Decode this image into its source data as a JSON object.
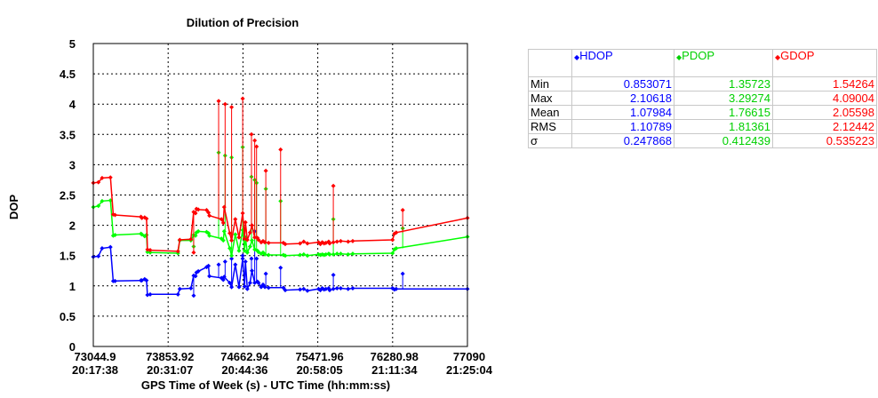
{
  "chart_data": {
    "type": "line",
    "title": "Dilution of Precision",
    "ylabel": "DOP",
    "xlabel": "GPS Time of Week (s) - UTC Time (hh:mm:ss)",
    "xlim": [
      73044.9,
      77090
    ],
    "ylim": [
      0,
      5
    ],
    "yticks": [
      "0",
      "0.5",
      "1",
      "1.5",
      "2",
      "2.5",
      "3",
      "3.5",
      "4",
      "4.5",
      "5"
    ],
    "xticks": [
      {
        "gps": "73044.9",
        "utc": "20:17:38"
      },
      {
        "gps": "73853.92",
        "utc": "20:31:07"
      },
      {
        "gps": "74662.94",
        "utc": "20:44:36"
      },
      {
        "gps": "75471.96",
        "utc": "20:58:05"
      },
      {
        "gps": "76280.98",
        "utc": "21:11:34"
      },
      {
        "gps": "77090",
        "utc": "21:25:04"
      }
    ],
    "grid": true,
    "series": [
      {
        "name": "HDOP",
        "color": "#0000ff",
        "x": [
          73044.9,
          73100,
          73140,
          73230,
          73260,
          73280,
          73560,
          73570,
          73600,
          73620,
          73630,
          73660,
          73960,
          73980,
          74100,
          74130,
          74150,
          74160,
          74180,
          74270,
          74290,
          74300,
          74430,
          74450,
          74460,
          74520,
          74540,
          74580,
          74620,
          74660,
          74680,
          74690,
          74710,
          74740,
          74760,
          74790,
          74820,
          74830,
          74860,
          74880,
          74900,
          74940,
          75100,
          75120,
          75280,
          75320,
          75360,
          75480,
          75500,
          75520,
          75540,
          75560,
          75590,
          75600,
          75640,
          75680,
          75720,
          75800,
          75850,
          76280,
          76300,
          76320,
          77090
        ],
        "y": [
          1.48,
          1.49,
          1.62,
          1.64,
          1.08,
          1.08,
          1.09,
          1.09,
          1.11,
          1.09,
          0.85,
          0.86,
          0.86,
          0.95,
          0.96,
          1.17,
          1.16,
          1.22,
          1.24,
          1.31,
          1.33,
          1.16,
          1.13,
          1.1,
          1.15,
          1.05,
          0.98,
          1.35,
          0.98,
          1.45,
          0.99,
          1.4,
          0.95,
          1.05,
          1.25,
          1.05,
          1.07,
          1.05,
          0.98,
          1.02,
          0.98,
          0.97,
          0.97,
          0.93,
          0.94,
          0.95,
          0.92,
          0.95,
          0.93,
          0.96,
          0.94,
          0.95,
          0.96,
          0.93,
          0.95,
          0.96,
          0.96,
          0.95,
          0.96,
          0.96,
          0.94,
          0.95,
          0.95
        ]
      },
      {
        "name": "PDOP",
        "color": "#00ff00",
        "x": [
          73044.9,
          73100,
          73140,
          73230,
          73260,
          73280,
          73560,
          73570,
          73600,
          73620,
          73630,
          73660,
          73960,
          73980,
          74100,
          74130,
          74150,
          74160,
          74180,
          74270,
          74290,
          74300,
          74430,
          74450,
          74460,
          74520,
          74540,
          74580,
          74620,
          74660,
          74680,
          74690,
          74710,
          74740,
          74760,
          74790,
          74820,
          74830,
          74860,
          74880,
          74900,
          74940,
          75100,
          75120,
          75280,
          75320,
          75360,
          75480,
          75500,
          75520,
          75540,
          75560,
          75590,
          75600,
          75640,
          75680,
          75720,
          75800,
          75850,
          76280,
          76300,
          76320,
          77090
        ],
        "y": [
          2.3,
          2.32,
          2.4,
          2.41,
          1.83,
          1.84,
          1.86,
          1.85,
          1.82,
          1.84,
          1.56,
          1.55,
          1.54,
          1.75,
          1.75,
          1.84,
          1.83,
          1.88,
          1.9,
          1.89,
          1.87,
          1.83,
          1.78,
          1.75,
          1.9,
          1.62,
          1.5,
          1.85,
          1.58,
          1.92,
          1.58,
          1.8,
          1.55,
          1.65,
          1.75,
          1.6,
          1.58,
          1.56,
          1.53,
          1.55,
          1.52,
          1.51,
          1.51,
          1.5,
          1.51,
          1.52,
          1.5,
          1.52,
          1.51,
          1.52,
          1.51,
          1.52,
          1.53,
          1.52,
          1.52,
          1.53,
          1.53,
          1.52,
          1.53,
          1.54,
          1.6,
          1.62,
          1.81
        ]
      },
      {
        "name": "GDOP",
        "color": "#ff0000",
        "x": [
          73044.9,
          73100,
          73140,
          73230,
          73260,
          73280,
          73560,
          73570,
          73600,
          73620,
          73630,
          73660,
          73960,
          73980,
          74100,
          74130,
          74150,
          74160,
          74180,
          74270,
          74290,
          74300,
          74430,
          74450,
          74460,
          74520,
          74540,
          74580,
          74620,
          74660,
          74680,
          74690,
          74710,
          74740,
          74760,
          74790,
          74820,
          74830,
          74860,
          74880,
          74900,
          74940,
          75100,
          75120,
          75280,
          75320,
          75360,
          75480,
          75500,
          75520,
          75540,
          75560,
          75590,
          75600,
          75640,
          75680,
          75720,
          75800,
          75850,
          76280,
          76300,
          76320,
          77090
        ],
        "y": [
          2.7,
          2.71,
          2.78,
          2.79,
          2.18,
          2.17,
          2.14,
          2.12,
          2.13,
          2.11,
          1.6,
          1.59,
          1.57,
          1.76,
          1.77,
          2.22,
          2.2,
          2.27,
          2.26,
          2.25,
          2.21,
          2.16,
          2.1,
          2.04,
          2.3,
          1.87,
          1.75,
          2.1,
          1.8,
          2.2,
          1.78,
          2.05,
          1.76,
          1.88,
          2.0,
          1.8,
          1.79,
          1.76,
          1.72,
          1.74,
          1.72,
          1.71,
          1.71,
          1.69,
          1.7,
          1.73,
          1.7,
          1.72,
          1.69,
          1.72,
          1.7,
          1.71,
          1.73,
          1.7,
          1.72,
          1.73,
          1.74,
          1.73,
          1.74,
          1.76,
          1.86,
          1.88,
          2.12
        ]
      }
    ],
    "spikes": [
      {
        "x": 73600,
        "series": [
          {
            "h": 1.09,
            "p": 1.84,
            "g": 2.11
          }
        ]
      },
      {
        "x": 74130,
        "hdop": 0.84,
        "pdop": 1.65,
        "gdop": 1.55
      },
      {
        "x": 74400,
        "hdop": 1.35,
        "pdop": 3.2,
        "gdop": 4.05
      },
      {
        "x": 74470,
        "hdop": 1.4,
        "pdop": 3.15,
        "gdop": 4.0
      },
      {
        "x": 74540,
        "hdop": 1.45,
        "pdop": 3.12,
        "gdop": 3.95
      },
      {
        "x": 74660,
        "hdop": 1.5,
        "pdop": 3.29,
        "gdop": 4.09
      },
      {
        "x": 74755,
        "hdop": 1.45,
        "pdop": 2.8,
        "gdop": 3.5
      },
      {
        "x": 74790,
        "hdop": 1.9,
        "pdop": 2.75,
        "gdop": 3.4
      },
      {
        "x": 74810,
        "hdop": 1.45,
        "pdop": 2.7,
        "gdop": 3.3
      },
      {
        "x": 74910,
        "hdop": 1.2,
        "pdop": 2.6,
        "gdop": 2.9
      },
      {
        "x": 75070,
        "hdop": 1.3,
        "pdop": 2.4,
        "gdop": 3.25
      },
      {
        "x": 75640,
        "hdop": 1.18,
        "pdop": 2.1,
        "gdop": 2.65
      },
      {
        "x": 76390,
        "hdop": 1.2,
        "pdop": 1.95,
        "gdop": 2.25
      }
    ]
  },
  "stats_table": {
    "columns": [
      {
        "name": "HDOP",
        "marker": "◆",
        "color": "#0000ff"
      },
      {
        "name": "PDOP",
        "marker": "◆",
        "color": "#00d000"
      },
      {
        "name": "GDOP",
        "marker": "◆",
        "color": "#ff0000"
      }
    ],
    "rows": [
      {
        "label": "Min",
        "values": [
          "0.853071",
          "1.35723",
          "1.54264"
        ]
      },
      {
        "label": "Max",
        "values": [
          "2.10618",
          "3.29274",
          "4.09004"
        ]
      },
      {
        "label": "Mean",
        "values": [
          "1.07984",
          "1.76615",
          "2.05598"
        ]
      },
      {
        "label": "RMS",
        "values": [
          "1.10789",
          "1.81361",
          "2.12442"
        ]
      },
      {
        "label": "σ",
        "values": [
          "0.247868",
          "0.412439",
          "0.535223"
        ]
      }
    ]
  }
}
